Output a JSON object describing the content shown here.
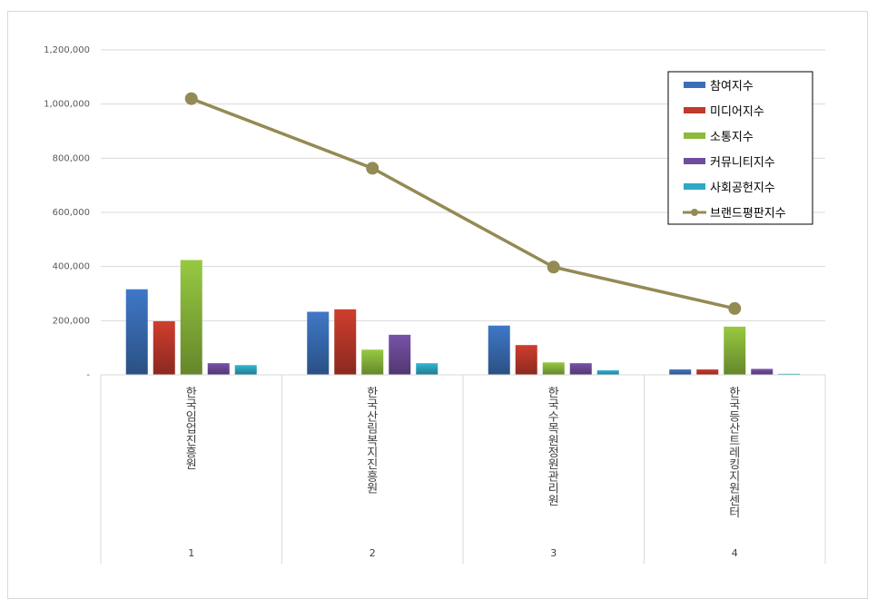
{
  "chart_data": {
    "type": "bar",
    "categories": [
      "1",
      "2",
      "3",
      "4"
    ],
    "category_names": [
      "한국임업진흥원",
      "한국산림복지진흥원",
      "한국수목원정원관리원",
      "한국등산트레킹지원센터"
    ],
    "series": [
      {
        "name": "참여지수",
        "type": "bar",
        "color": "#3a6fb8",
        "values": [
          316000,
          233000,
          182000,
          20000
        ]
      },
      {
        "name": "미디어지수",
        "type": "bar",
        "color": "#c0392b",
        "values": [
          198000,
          242000,
          110000,
          20000
        ]
      },
      {
        "name": "소통지수",
        "type": "bar",
        "color": "#8cba3c",
        "values": [
          424000,
          93000,
          46000,
          178000
        ]
      },
      {
        "name": "커뮤니티지수",
        "type": "bar",
        "color": "#6f4d9c",
        "values": [
          43000,
          148000,
          43000,
          22000
        ]
      },
      {
        "name": "사회공헌지수",
        "type": "bar",
        "color": "#2ea9c4",
        "values": [
          36000,
          43000,
          17000,
          4000
        ]
      },
      {
        "name": "브랜드평판지수",
        "type": "line",
        "color": "#948a54",
        "values": [
          1020000,
          763000,
          398000,
          245000
        ]
      }
    ],
    "ylim": [
      0,
      1200000
    ],
    "yticks": [
      0,
      200000,
      400000,
      600000,
      800000,
      1000000,
      1200000
    ],
    "ytick_labels": [
      "-",
      "200,000",
      "400,000",
      "600,000",
      "800,000",
      "1,000,000",
      "1,200,000"
    ],
    "grid": true,
    "legend": "top-right"
  }
}
